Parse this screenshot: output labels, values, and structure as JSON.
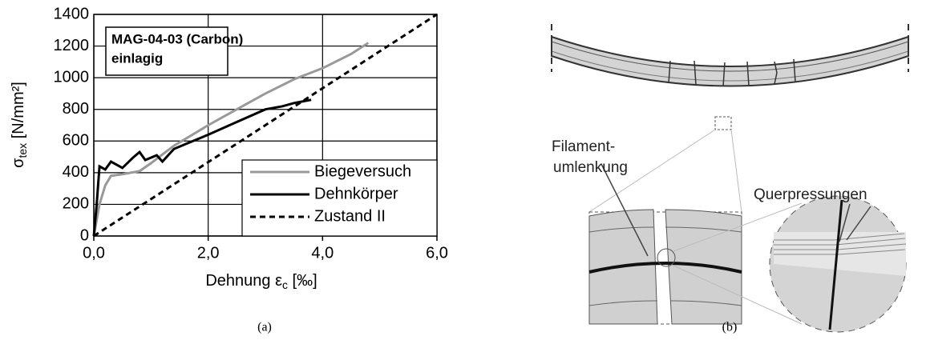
{
  "chart_data": {
    "type": "line",
    "ylabel": {
      "symbol": "σ",
      "subscript": "tex",
      "unit": " [N/mm²]"
    },
    "xlabel": {
      "symbol": "Dehnung ε",
      "subscript": "c",
      "unit": " [‰]"
    },
    "annotation": [
      "MAG-04-03 (Carbon)",
      "einlagig"
    ],
    "caption": "(a)",
    "xlim": [
      0,
      6
    ],
    "ylim": [
      0,
      1400
    ],
    "xticks": [
      {
        "value": 0,
        "label": "0,0"
      },
      {
        "value": 2,
        "label": "2,0"
      },
      {
        "value": 4,
        "label": "4,0"
      },
      {
        "value": 6,
        "label": "6,0"
      }
    ],
    "yticks": [
      0,
      200,
      400,
      600,
      800,
      1000,
      1200,
      1400
    ],
    "grid": true,
    "legend": "lower right",
    "series": [
      {
        "name": "Biegeversuch",
        "color": "#999999",
        "linestyle": "solid",
        "x": [
          0,
          0.1,
          0.2,
          0.3,
          0.5,
          0.8,
          1.0,
          1.4,
          2.0,
          2.5,
          3.0,
          3.5,
          4.0,
          4.5,
          4.8
        ],
        "values": [
          0,
          200,
          320,
          380,
          390,
          410,
          460,
          570,
          700,
          800,
          900,
          990,
          1060,
          1150,
          1220
        ]
      },
      {
        "name": "Dehnkörper",
        "color": "#000000",
        "linestyle": "solid",
        "x": [
          0,
          0.05,
          0.1,
          0.2,
          0.3,
          0.5,
          0.7,
          0.8,
          0.9,
          1.1,
          1.2,
          1.4,
          1.6,
          2.0,
          2.5,
          3.0,
          3.3,
          3.5,
          3.8
        ],
        "values": [
          0,
          200,
          440,
          420,
          470,
          430,
          500,
          530,
          480,
          510,
          470,
          550,
          580,
          640,
          720,
          800,
          820,
          840,
          860
        ]
      },
      {
        "name": "Zustand II",
        "color": "#000000",
        "linestyle": "dashed",
        "x": [
          0,
          6
        ],
        "values": [
          0,
          1400
        ]
      }
    ]
  },
  "diagram": {
    "labels": [
      "Filament-",
      "umlenkung",
      "Querpressungen"
    ],
    "caption": "(b)"
  }
}
